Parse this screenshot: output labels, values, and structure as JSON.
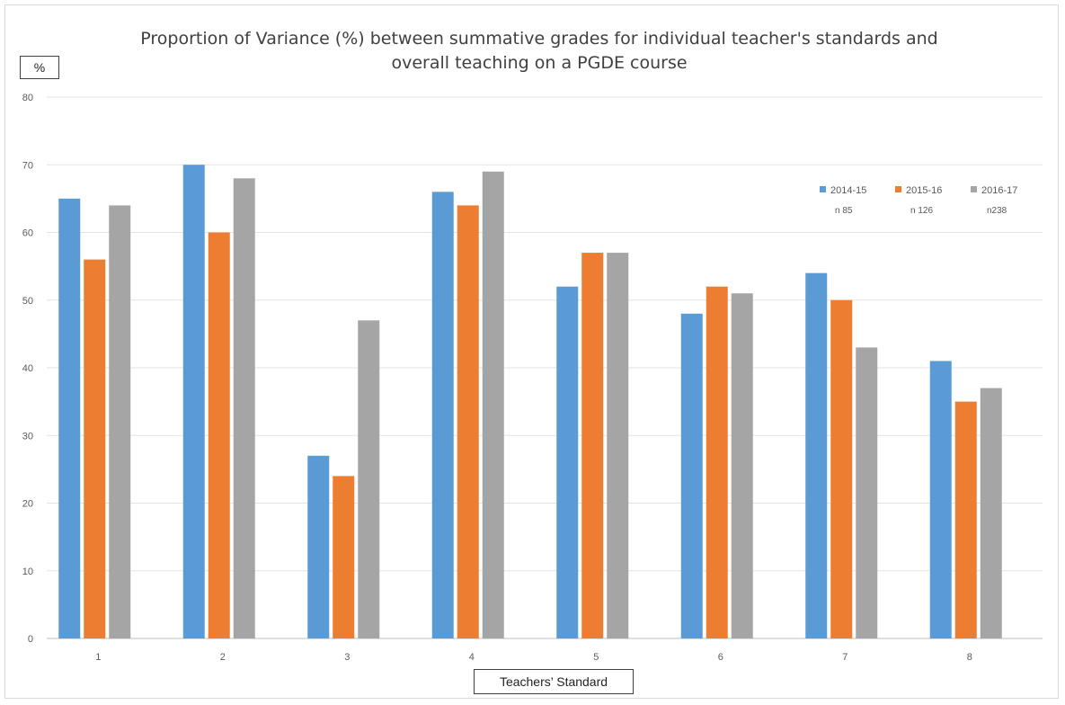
{
  "chart_data": {
    "type": "bar",
    "title": "Proportion of Variance (%) between summative grades for individual teacher's standards and overall teaching on a PGDE course",
    "xlabel": "Teachers’ Standard",
    "ylabel": "%",
    "ylim": [
      0,
      80
    ],
    "yticks": [
      "0",
      "10",
      "20",
      "30",
      "40",
      "50",
      "60",
      "70",
      "80"
    ],
    "categories": [
      "1",
      "2",
      "3",
      "4",
      "5",
      "6",
      "7",
      "8"
    ],
    "grid": true,
    "legend_position": "top-right",
    "series": [
      {
        "name": "2014-15",
        "note": "n 85",
        "color": "#5b9bd5",
        "values": [
          65,
          70,
          27,
          66,
          52,
          48,
          54,
          41
        ]
      },
      {
        "name": "2015-16",
        "note": "n 126",
        "color": "#ed7d31",
        "values": [
          56,
          60,
          24,
          64,
          57,
          52,
          50,
          35
        ]
      },
      {
        "name": "2016-17",
        "note": "n238",
        "color": "#a5a5a5",
        "values": [
          64,
          68,
          47,
          69,
          57,
          51,
          43,
          37
        ]
      }
    ]
  }
}
